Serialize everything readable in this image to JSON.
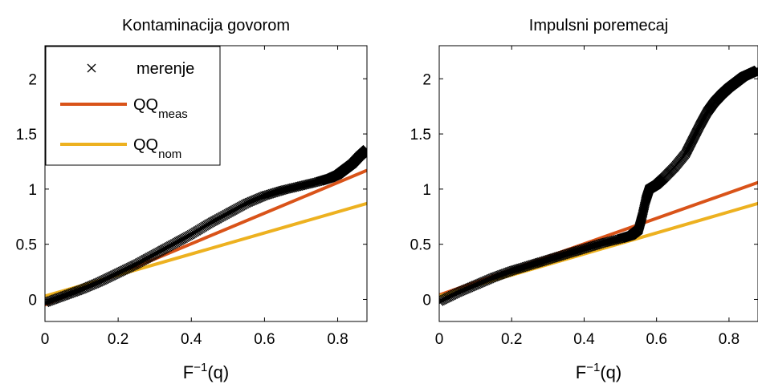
{
  "colors": {
    "meas": "#d95319",
    "nom": "#edb120",
    "marker": "#000000",
    "axes": "#000000",
    "background": "#ffffff"
  },
  "legend": {
    "entries": [
      {
        "label": "merenje",
        "sub": "",
        "kind": "marker"
      },
      {
        "label": "QQ",
        "sub": "meas",
        "kind": "line",
        "color": "#d95319"
      },
      {
        "label": "QQ",
        "sub": "nom",
        "kind": "line",
        "color": "#edb120"
      }
    ],
    "placement": "top-left of left panel"
  },
  "chart_data": [
    {
      "type": "scatter",
      "title": "Kontaminacija govorom",
      "xlabel_base": "F",
      "xlabel_sup": "−1",
      "xlabel_tail": "(q)",
      "xlim": [
        0,
        0.88
      ],
      "ylim": [
        -0.2,
        2.3
      ],
      "xticks": [
        0,
        0.2,
        0.4,
        0.6,
        0.8
      ],
      "xtick_labels": [
        "0",
        "0.2",
        "0.4",
        "0.6",
        "0.8"
      ],
      "yticks": [
        0,
        0.5,
        1,
        1.5,
        2
      ],
      "ytick_labels": [
        "0",
        "0.5",
        "1",
        "1.5",
        "2"
      ],
      "series": [
        {
          "name": "merenje",
          "kind": "markers",
          "x": [
            0,
            0.05,
            0.1,
            0.15,
            0.2,
            0.25,
            0.3,
            0.35,
            0.4,
            0.45,
            0.5,
            0.55,
            0.6,
            0.65,
            0.7,
            0.75,
            0.78,
            0.8,
            0.82,
            0.84,
            0.86,
            0.88
          ],
          "y": [
            -0.03,
            0.03,
            0.09,
            0.16,
            0.24,
            0.32,
            0.41,
            0.5,
            0.59,
            0.69,
            0.78,
            0.87,
            0.94,
            0.99,
            1.03,
            1.07,
            1.1,
            1.13,
            1.18,
            1.23,
            1.3,
            1.36
          ]
        },
        {
          "name": "QQmeas",
          "kind": "line",
          "x": [
            0,
            0.88
          ],
          "y": [
            -0.05,
            1.17
          ]
        },
        {
          "name": "QQnom",
          "kind": "line",
          "x": [
            0,
            0.88
          ],
          "y": [
            0.03,
            0.87
          ]
        }
      ]
    },
    {
      "type": "scatter",
      "title": "Impulsni poremecaj",
      "xlabel_base": "F",
      "xlabel_sup": "−1",
      "xlabel_tail": "(q)",
      "xlim": [
        0,
        0.88
      ],
      "ylim": [
        -0.2,
        2.3
      ],
      "xticks": [
        0,
        0.2,
        0.4,
        0.6,
        0.8
      ],
      "xtick_labels": [
        "0",
        "0.2",
        "0.4",
        "0.6",
        "0.8"
      ],
      "yticks": [
        0,
        0.5,
        1,
        1.5,
        2
      ],
      "ytick_labels": [
        "0",
        "0.5",
        "1",
        "1.5",
        "2"
      ],
      "series": [
        {
          "name": "merenje",
          "kind": "markers",
          "x": [
            0,
            0.05,
            0.1,
            0.15,
            0.2,
            0.25,
            0.3,
            0.35,
            0.4,
            0.45,
            0.5,
            0.53,
            0.55,
            0.56,
            0.57,
            0.58,
            0.6,
            0.62,
            0.65,
            0.68,
            0.7,
            0.72,
            0.74,
            0.76,
            0.78,
            0.8,
            0.82,
            0.84,
            0.86,
            0.88
          ],
          "y": [
            -0.02,
            0.06,
            0.13,
            0.2,
            0.26,
            0.31,
            0.36,
            0.41,
            0.46,
            0.51,
            0.55,
            0.58,
            0.63,
            0.75,
            0.9,
            1.0,
            1.04,
            1.1,
            1.2,
            1.32,
            1.45,
            1.58,
            1.7,
            1.79,
            1.86,
            1.92,
            1.97,
            2.02,
            2.05,
            2.08
          ]
        },
        {
          "name": "QQmeas",
          "kind": "line",
          "x": [
            0,
            0.88
          ],
          "y": [
            0.04,
            1.06
          ]
        },
        {
          "name": "QQnom",
          "kind": "line",
          "x": [
            0,
            0.88
          ],
          "y": [
            0.03,
            0.87
          ]
        }
      ]
    }
  ]
}
